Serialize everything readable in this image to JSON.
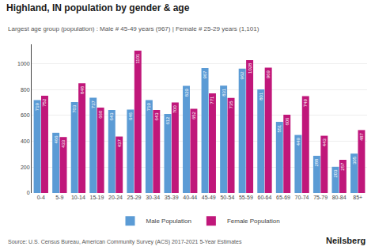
{
  "chart_data": {
    "type": "bar",
    "title": "Highland, IN population by gender & age",
    "subtitle": "Largest age group (population) : Male # 45-49 years (967) | Female # 25-29 years (1,101)",
    "annotations": [
      "Source: U.S. Census Bureau, American Community Survey (ACS) 2017-2021 5-Year Estimates",
      "Neilsberg"
    ],
    "categories": [
      "0-4",
      "5-9",
      "10-14",
      "15-19",
      "20-24",
      "25-29",
      "30-34",
      "35-39",
      "40-44",
      "45-49",
      "50-54",
      "55-59",
      "60-64",
      "65-69",
      "70-74",
      "75-79",
      "80-84",
      "85+"
    ],
    "series": [
      {
        "name": "Male Population",
        "color": "#5b9bd5",
        "values": [
          719,
          466,
          703,
          737,
          643,
          646,
          719,
          612,
          829,
          967,
          831,
          962,
          801,
          551,
          449,
          288,
          203,
          305
        ]
      },
      {
        "name": "Female Population",
        "color": "#c0177a",
        "values": [
          752,
          433,
          848,
          660,
          437,
          1101,
          643,
          700,
          652,
          771,
          735,
          1028,
          969,
          606,
          749,
          443,
          257,
          487
        ]
      }
    ],
    "ylim": [
      0,
      1150
    ],
    "yticks": [
      0,
      200,
      400,
      600,
      800,
      1000
    ],
    "grid": true,
    "legend": "bottom",
    "data_labels": true
  }
}
